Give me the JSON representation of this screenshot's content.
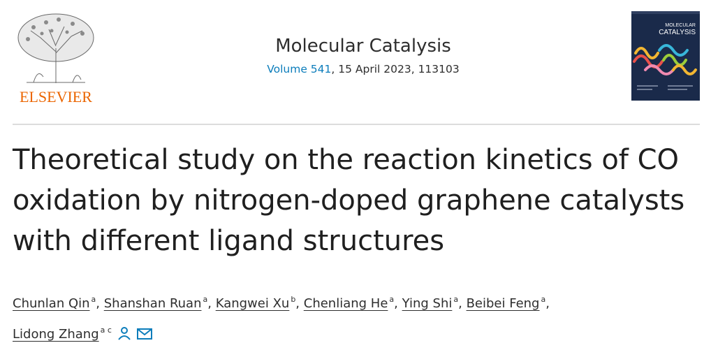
{
  "publisher": {
    "logo_text": "ELSEVIER"
  },
  "journal": {
    "title": "Molecular Catalysis",
    "volume": "Volume 541",
    "date_article": ", 15 April 2023, 113103"
  },
  "cover": {
    "title_line1": "MOLECULAR",
    "title_line2": "CATALYSIS"
  },
  "article": {
    "title": "Theoretical study on the reaction kinetics of CO oxidation by nitrogen-doped graphene catalysts with different ligand structures"
  },
  "authors": [
    {
      "name": "Chunlan Qin",
      "aff": "a",
      "sep": ", "
    },
    {
      "name": "Shanshan Ruan",
      "aff": "a",
      "sep": ", "
    },
    {
      "name": "Kangwei Xu",
      "aff": "b",
      "sep": ", "
    },
    {
      "name": "Chenliang He",
      "aff": "a",
      "sep": ", "
    },
    {
      "name": "Ying Shi",
      "aff": "a",
      "sep": ", "
    },
    {
      "name": "Beibei Feng",
      "aff": "a",
      "sep": ","
    },
    {
      "name": "Lidong Zhang",
      "aff": "a c",
      "sep": ""
    }
  ],
  "colors": {
    "elsevier_orange": "#eb6500",
    "link_blue": "#0c7dbb",
    "cover_navy": "#1a2a4a"
  },
  "icons": [
    "elsevier-tree-logo",
    "person-icon",
    "envelope-icon"
  ]
}
